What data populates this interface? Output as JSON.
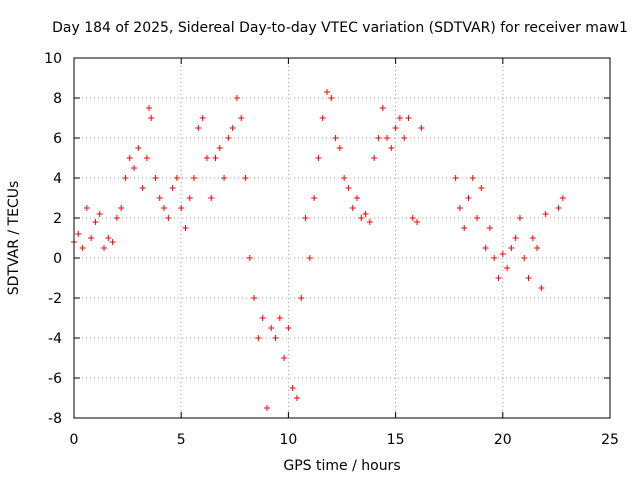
{
  "chart_data": {
    "type": "scatter",
    "title": "Day 184 of 2025, Sidereal Day-to-day VTEC variation (SDTVAR) for receiver maw1",
    "xlabel": "GPS time / hours",
    "ylabel": "SDTVAR / TECUs",
    "xlim": [
      0,
      25
    ],
    "ylim": [
      -8,
      10
    ],
    "xticks": [
      0,
      5,
      10,
      15,
      20,
      25
    ],
    "yticks": [
      -8,
      -6,
      -4,
      -2,
      0,
      2,
      4,
      6,
      8,
      10
    ],
    "grid": true,
    "marker": "+",
    "color": "#ff0000",
    "series": [
      {
        "name": "SDTVAR",
        "x": [
          0.0,
          0.2,
          0.4,
          0.6,
          0.8,
          1.0,
          1.2,
          1.4,
          1.6,
          1.8,
          2.0,
          2.2,
          2.4,
          2.6,
          2.8,
          3.0,
          3.2,
          3.4,
          3.5,
          3.6,
          3.8,
          4.0,
          4.2,
          4.4,
          4.6,
          4.8,
          5.0,
          5.2,
          5.4,
          5.6,
          5.8,
          6.0,
          6.2,
          6.4,
          6.6,
          6.8,
          7.0,
          7.2,
          7.4,
          7.6,
          7.8,
          8.0,
          8.2,
          8.4,
          8.6,
          8.8,
          9.0,
          9.2,
          9.4,
          9.6,
          9.8,
          10.0,
          10.2,
          10.4,
          10.6,
          10.8,
          11.0,
          11.2,
          11.4,
          11.6,
          11.8,
          12.0,
          12.2,
          12.4,
          12.6,
          12.8,
          13.0,
          13.2,
          13.4,
          13.6,
          13.8,
          14.0,
          14.2,
          14.4,
          14.6,
          14.8,
          15.0,
          15.2,
          15.4,
          15.6,
          15.8,
          16.0,
          16.2,
          17.8,
          18.0,
          18.2,
          18.4,
          18.6,
          18.8,
          19.0,
          19.2,
          19.4,
          19.6,
          19.8,
          20.0,
          20.2,
          20.4,
          20.6,
          20.8,
          21.0,
          21.2,
          21.4,
          21.6,
          21.8,
          22.0,
          22.6,
          22.8
        ],
        "y": [
          0.8,
          1.2,
          0.5,
          2.5,
          1.0,
          1.8,
          2.2,
          0.5,
          1.0,
          0.8,
          2.0,
          2.5,
          4.0,
          5.0,
          4.5,
          5.5,
          3.5,
          5.0,
          7.5,
          7.0,
          4.0,
          3.0,
          2.5,
          2.0,
          3.5,
          4.0,
          2.5,
          1.5,
          3.0,
          4.0,
          6.5,
          7.0,
          5.0,
          3.0,
          5.0,
          5.5,
          4.0,
          6.0,
          6.5,
          8.0,
          7.0,
          4.0,
          0.0,
          -2.0,
          -4.0,
          -3.0,
          -7.5,
          -3.5,
          -4.0,
          -3.0,
          -5.0,
          -3.5,
          -6.5,
          -7.0,
          -2.0,
          2.0,
          0.0,
          3.0,
          5.0,
          7.0,
          8.3,
          8.0,
          6.0,
          5.5,
          4.0,
          3.5,
          2.5,
          3.0,
          2.0,
          2.2,
          1.8,
          5.0,
          6.0,
          7.5,
          6.0,
          5.5,
          6.5,
          7.0,
          6.0,
          7.0,
          2.0,
          1.8,
          6.5,
          4.0,
          2.5,
          1.5,
          3.0,
          4.0,
          2.0,
          3.5,
          0.5,
          1.5,
          0.0,
          -1.0,
          0.2,
          -0.5,
          0.5,
          1.0,
          2.0,
          0.0,
          -1.0,
          1.0,
          0.5,
          -1.5,
          2.2,
          2.5,
          3.0
        ]
      }
    ]
  }
}
